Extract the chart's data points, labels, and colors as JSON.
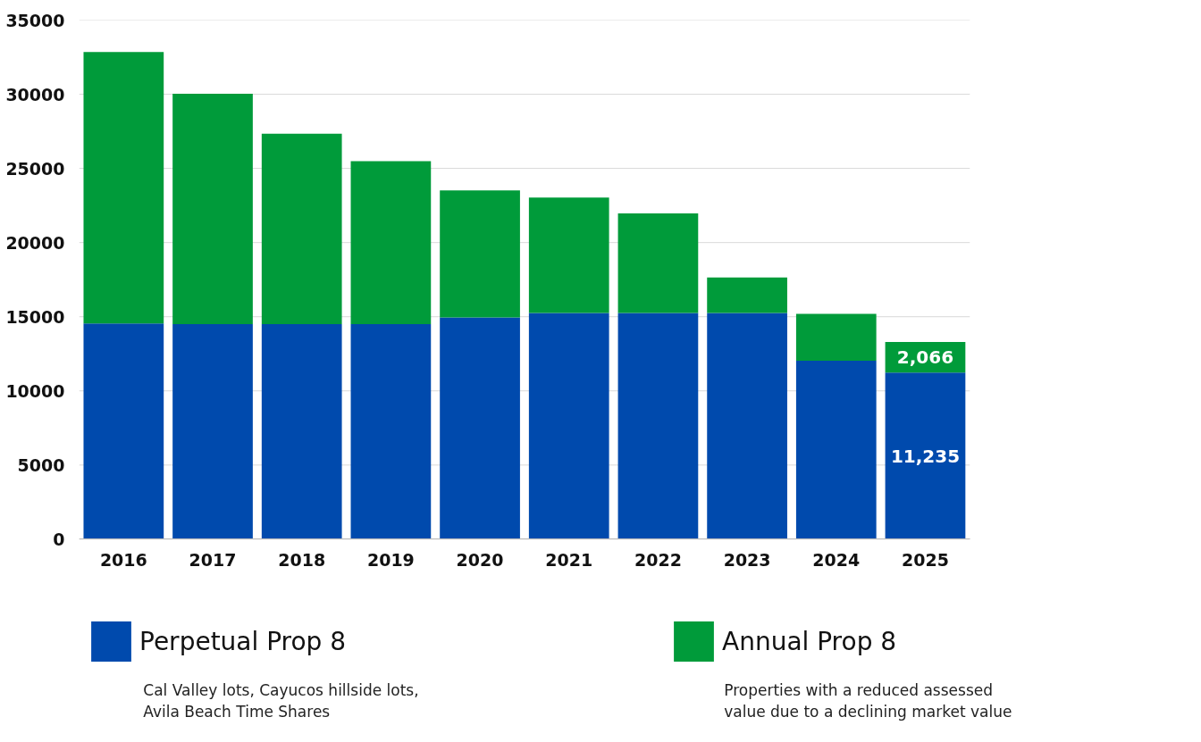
{
  "chart_data": {
    "type": "bar",
    "stacked": true,
    "categories": [
      "2016",
      "2017",
      "2018",
      "2019",
      "2020",
      "2021",
      "2022",
      "2023",
      "2024",
      "2025"
    ],
    "series": [
      {
        "name": "Perpetual Prop 8",
        "color": "#004aad",
        "values": [
          14550,
          14500,
          14500,
          14500,
          14950,
          15250,
          15250,
          15250,
          12030,
          11235
        ],
        "value_labels": [
          null,
          null,
          null,
          null,
          null,
          null,
          null,
          null,
          null,
          "11,235"
        ]
      },
      {
        "name": "Annual Prop 8",
        "color": "#009b3a",
        "values": [
          18300,
          15530,
          12840,
          10990,
          8560,
          7780,
          6710,
          2400,
          3170,
          2066
        ],
        "value_labels": [
          null,
          null,
          null,
          null,
          null,
          null,
          null,
          null,
          null,
          "2,066"
        ]
      }
    ],
    "ylim": [
      0,
      35000
    ],
    "yticks": [
      0,
      5000,
      10000,
      15000,
      20000,
      25000,
      30000,
      35000
    ],
    "grid": "y",
    "legend": "bottom",
    "annotations": [
      "Cal Valley lots, Cayucos hillside lots, Avila Beach Time Shares",
      "Properties with a reduced assessed value due to a declining market value"
    ]
  }
}
